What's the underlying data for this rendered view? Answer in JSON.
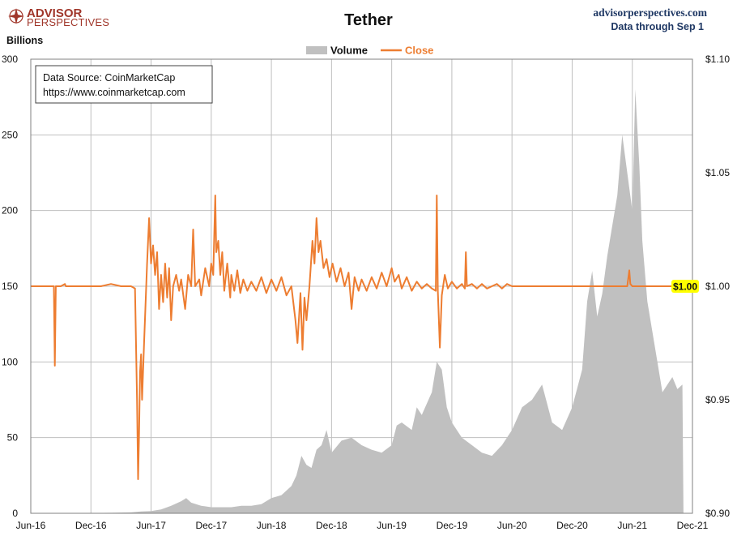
{
  "header": {
    "title": "Tether",
    "site": "advisorperspectives.com",
    "data_through": "Data through Sep 1",
    "logo_line1": "ADVISOR",
    "logo_line2": "PERSPECTIVES",
    "logo_icon": "compass-rose-icon"
  },
  "source_box": {
    "line1": "Data Source: CoinMarketCap",
    "line2": "https://www.coinmarketcap.com"
  },
  "colors": {
    "volume": "#c0c0c0",
    "close": "#ed7d31",
    "grid": "#bfbfbf",
    "brand": "#a0362a",
    "site_text": "#1f3864",
    "last_value_bg": "#ffff00"
  },
  "chart_data": {
    "type": "area+line",
    "ylabel": "Billions",
    "y_left_lim": [
      0,
      300
    ],
    "y_left_ticks": [
      "0",
      "50",
      "100",
      "150",
      "200",
      "250",
      "300"
    ],
    "y_right_lim": [
      0.9,
      1.1
    ],
    "y_right_ticks": [
      "$0.90",
      "$0.95",
      "$1.00",
      "$1.05",
      "$1.10"
    ],
    "x_ticks": [
      "Jun-16",
      "Dec-16",
      "Jun-17",
      "Dec-17",
      "Jun-18",
      "Dec-18",
      "Jun-19",
      "Dec-19",
      "Jun-20",
      "Dec-20",
      "Jun-21",
      "Dec-21"
    ],
    "grid": true,
    "legend_position": "top-center",
    "last_value_label": "$1.00",
    "series": [
      {
        "name": "Volume",
        "kind": "area",
        "axis": "left",
        "points": [
          [
            0,
            0
          ],
          [
            5,
            0
          ],
          [
            8,
            0.3
          ],
          [
            10,
            0.6
          ],
          [
            11,
            1.2
          ],
          [
            12,
            1.5
          ],
          [
            13,
            2.5
          ],
          [
            14,
            5
          ],
          [
            15,
            8
          ],
          [
            15.5,
            10
          ],
          [
            16,
            7
          ],
          [
            17,
            5
          ],
          [
            18,
            4
          ],
          [
            19,
            4
          ],
          [
            20,
            4
          ],
          [
            21,
            5
          ],
          [
            22,
            5
          ],
          [
            23,
            6
          ],
          [
            24,
            10
          ],
          [
            25,
            12
          ],
          [
            26,
            18
          ],
          [
            26.5,
            25
          ],
          [
            27,
            38
          ],
          [
            27.5,
            32
          ],
          [
            28,
            30
          ],
          [
            28.5,
            42
          ],
          [
            29,
            45
          ],
          [
            29.5,
            55
          ],
          [
            30,
            40
          ],
          [
            31,
            48
          ],
          [
            32,
            50
          ],
          [
            33,
            45
          ],
          [
            34,
            42
          ],
          [
            35,
            40
          ],
          [
            36,
            45
          ],
          [
            36.5,
            58
          ],
          [
            37,
            60
          ],
          [
            38,
            55
          ],
          [
            38.5,
            70
          ],
          [
            39,
            65
          ],
          [
            40,
            80
          ],
          [
            40.5,
            100
          ],
          [
            41,
            95
          ],
          [
            41.5,
            70
          ],
          [
            42,
            60
          ],
          [
            43,
            50
          ],
          [
            44,
            45
          ],
          [
            45,
            40
          ],
          [
            46,
            38
          ],
          [
            47,
            45
          ],
          [
            48,
            55
          ],
          [
            49,
            70
          ],
          [
            50,
            75
          ],
          [
            51,
            85
          ],
          [
            52,
            60
          ],
          [
            53,
            55
          ],
          [
            54,
            70
          ],
          [
            55,
            95
          ],
          [
            55.5,
            140
          ],
          [
            56,
            160
          ],
          [
            56.5,
            130
          ],
          [
            57,
            145
          ],
          [
            57.5,
            170
          ],
          [
            58,
            190
          ],
          [
            58.5,
            210
          ],
          [
            59,
            250
          ],
          [
            59.5,
            225
          ],
          [
            60,
            200
          ],
          [
            60.3,
            280
          ],
          [
            60.7,
            230
          ],
          [
            61,
            180
          ],
          [
            61.5,
            140
          ],
          [
            62,
            120
          ],
          [
            62.5,
            100
          ],
          [
            63,
            80
          ],
          [
            63.5,
            85
          ],
          [
            64,
            90
          ],
          [
            64.5,
            82
          ],
          [
            65,
            85
          ],
          [
            65.1,
            0
          ]
        ]
      },
      {
        "name": "Close",
        "kind": "line",
        "axis": "right",
        "points": [
          [
            0,
            1.0
          ],
          [
            1,
            1.0
          ],
          [
            2,
            1.0
          ],
          [
            2.3,
            1.0
          ],
          [
            2.4,
            0.965
          ],
          [
            2.5,
            1.0
          ],
          [
            3,
            1.0
          ],
          [
            3.4,
            1.001
          ],
          [
            3.5,
            1.0
          ],
          [
            4,
            1.0
          ],
          [
            5,
            1.0
          ],
          [
            6,
            1.0
          ],
          [
            7,
            1.0
          ],
          [
            8,
            1.001
          ],
          [
            9,
            1.0
          ],
          [
            10,
            1.0
          ],
          [
            10.4,
            0.999
          ],
          [
            10.6,
            0.95
          ],
          [
            10.7,
            0.915
          ],
          [
            10.8,
            0.935
          ],
          [
            10.9,
            0.962
          ],
          [
            11,
            0.97
          ],
          [
            11.1,
            0.95
          ],
          [
            11.3,
            0.975
          ],
          [
            11.6,
            1.01
          ],
          [
            11.8,
            1.03
          ],
          [
            12,
            1.01
          ],
          [
            12.2,
            1.018
          ],
          [
            12.4,
            1.005
          ],
          [
            12.6,
            1.015
          ],
          [
            12.8,
            0.99
          ],
          [
            13,
            1.005
          ],
          [
            13.2,
            0.993
          ],
          [
            13.4,
            1.01
          ],
          [
            13.6,
            0.995
          ],
          [
            13.8,
            1.008
          ],
          [
            14,
            0.985
          ],
          [
            14.2,
            1.0
          ],
          [
            14.5,
            1.005
          ],
          [
            14.8,
            0.998
          ],
          [
            15,
            1.003
          ],
          [
            15.4,
            0.99
          ],
          [
            15.7,
            1.005
          ],
          [
            16,
            1.0
          ],
          [
            16.2,
            1.025
          ],
          [
            16.4,
            1.0
          ],
          [
            16.8,
            1.003
          ],
          [
            17,
            0.996
          ],
          [
            17.4,
            1.008
          ],
          [
            17.8,
            1.0
          ],
          [
            18,
            1.01
          ],
          [
            18.2,
            1.005
          ],
          [
            18.4,
            1.04
          ],
          [
            18.5,
            1.015
          ],
          [
            18.7,
            1.02
          ],
          [
            18.9,
            1.005
          ],
          [
            19.1,
            1.015
          ],
          [
            19.3,
            0.998
          ],
          [
            19.6,
            1.01
          ],
          [
            19.9,
            0.995
          ],
          [
            20,
            1.005
          ],
          [
            20.3,
            0.998
          ],
          [
            20.6,
            1.007
          ],
          [
            20.9,
            0.997
          ],
          [
            21.2,
            1.003
          ],
          [
            21.6,
            0.998
          ],
          [
            22,
            1.002
          ],
          [
            22.5,
            0.998
          ],
          [
            23,
            1.004
          ],
          [
            23.5,
            0.997
          ],
          [
            24,
            1.003
          ],
          [
            24.5,
            0.998
          ],
          [
            25,
            1.004
          ],
          [
            25.5,
            0.996
          ],
          [
            26,
            1.0
          ],
          [
            26.4,
            0.985
          ],
          [
            26.6,
            0.975
          ],
          [
            26.9,
            0.997
          ],
          [
            27.1,
            0.972
          ],
          [
            27.3,
            0.995
          ],
          [
            27.5,
            0.985
          ],
          [
            27.8,
            1.0
          ],
          [
            28.1,
            1.02
          ],
          [
            28.3,
            1.01
          ],
          [
            28.5,
            1.03
          ],
          [
            28.7,
            1.015
          ],
          [
            28.9,
            1.02
          ],
          [
            29.2,
            1.008
          ],
          [
            29.5,
            1.012
          ],
          [
            29.8,
            1.004
          ],
          [
            30.1,
            1.01
          ],
          [
            30.5,
            1.002
          ],
          [
            30.9,
            1.008
          ],
          [
            31.3,
            1.0
          ],
          [
            31.7,
            1.006
          ],
          [
            32,
            0.99
          ],
          [
            32.3,
            1.004
          ],
          [
            32.7,
            0.998
          ],
          [
            33,
            1.003
          ],
          [
            33.5,
            0.998
          ],
          [
            34,
            1.004
          ],
          [
            34.5,
            0.999
          ],
          [
            35,
            1.006
          ],
          [
            35.5,
            1.0
          ],
          [
            36,
            1.008
          ],
          [
            36.3,
            1.002
          ],
          [
            36.7,
            1.005
          ],
          [
            37,
            0.999
          ],
          [
            37.5,
            1.004
          ],
          [
            38,
            0.998
          ],
          [
            38.5,
            1.002
          ],
          [
            39,
            0.999
          ],
          [
            39.5,
            1.001
          ],
          [
            40,
            0.999
          ],
          [
            40.4,
            0.998
          ],
          [
            40.5,
            1.04
          ],
          [
            40.6,
            0.998
          ],
          [
            40.8,
            0.973
          ],
          [
            41,
            0.996
          ],
          [
            41.3,
            1.005
          ],
          [
            41.6,
            0.999
          ],
          [
            42,
            1.002
          ],
          [
            42.5,
            0.999
          ],
          [
            43,
            1.001
          ],
          [
            43.3,
            0.999
          ],
          [
            43.4,
            1.015
          ],
          [
            43.5,
            1.0
          ],
          [
            44,
            1.001
          ],
          [
            44.5,
            0.999
          ],
          [
            45,
            1.001
          ],
          [
            45.5,
            0.999
          ],
          [
            46,
            1.0
          ],
          [
            46.5,
            1.001
          ],
          [
            47,
            0.999
          ],
          [
            47.5,
            1.001
          ],
          [
            48,
            1.0
          ],
          [
            49,
            1.0
          ],
          [
            50,
            1.0
          ],
          [
            51,
            1.0
          ],
          [
            52,
            1.0
          ],
          [
            53,
            1.0
          ],
          [
            54,
            1.0
          ],
          [
            55,
            1.0
          ],
          [
            56,
            1.0
          ],
          [
            57,
            1.0
          ],
          [
            58,
            1.0
          ],
          [
            59,
            1.0
          ],
          [
            59.5,
            1.0
          ],
          [
            59.7,
            1.007
          ],
          [
            59.8,
            1.001
          ],
          [
            60,
            1.0
          ],
          [
            61,
            1.0
          ],
          [
            62,
            1.0
          ],
          [
            63,
            1.0
          ],
          [
            64,
            1.0
          ],
          [
            65,
            1.0
          ]
        ]
      }
    ]
  }
}
